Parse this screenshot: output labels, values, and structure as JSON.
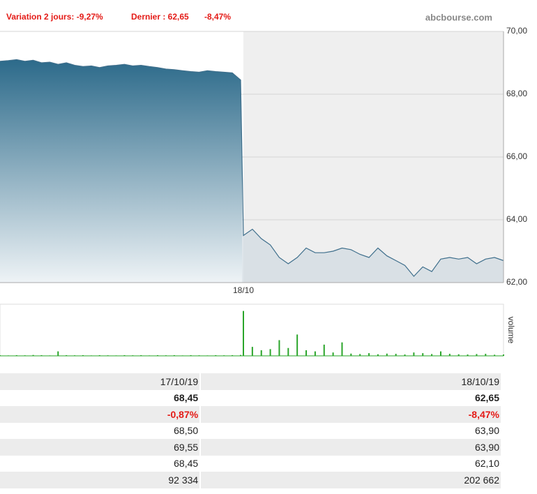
{
  "header": {
    "variation": "Variation 2 jours: -9,27%",
    "last": "Dernier : 62,65",
    "last_change": "-8,47%",
    "source": "abcbourse.com"
  },
  "chart_data": [
    {
      "type": "area",
      "color": "#3f6f8c",
      "categories": [
        null,
        null,
        null,
        null,
        null,
        null,
        null,
        null,
        null,
        null,
        null,
        null,
        null,
        null,
        null,
        null,
        null,
        null,
        null,
        null,
        null,
        null,
        null,
        null,
        null,
        null,
        null,
        null,
        null,
        null,
        "18/10",
        null,
        null,
        null,
        null,
        null,
        null,
        null,
        null,
        null,
        null,
        null,
        null,
        null,
        null,
        null,
        null,
        null,
        null,
        null,
        null,
        null,
        null,
        null,
        null,
        null,
        null,
        null,
        null,
        null
      ],
      "values": [
        69.05,
        69.07,
        69.1,
        69.05,
        69.08,
        69.0,
        69.02,
        68.95,
        69.0,
        68.92,
        68.88,
        68.9,
        68.85,
        68.9,
        68.92,
        68.95,
        68.9,
        68.92,
        68.88,
        68.85,
        68.8,
        68.78,
        68.75,
        68.72,
        68.7,
        68.75,
        68.72,
        68.7,
        68.68,
        68.45,
        63.5,
        63.7,
        63.4,
        63.2,
        62.8,
        62.6,
        62.8,
        63.1,
        62.95,
        62.95,
        63.0,
        63.1,
        63.05,
        62.9,
        62.8,
        63.1,
        62.85,
        62.7,
        62.55,
        62.2,
        62.5,
        62.35,
        62.75,
        62.8,
        62.75,
        62.8,
        62.6,
        62.75,
        62.8,
        62.7
      ],
      "ylim": [
        62,
        70
      ],
      "yticks": [
        {
          "value": 62,
          "label": "62,00"
        },
        {
          "value": 64,
          "label": "64,00"
        },
        {
          "value": 66,
          "label": "66,00"
        },
        {
          "value": 68,
          "label": "68,00"
        },
        {
          "value": 70,
          "label": "70,00"
        }
      ],
      "grid": true
    },
    {
      "type": "bar",
      "ylabel": "volume",
      "color": "#2aa52a",
      "ylim": [
        0,
        23000
      ],
      "values": [
        300,
        200,
        300,
        250,
        400,
        300,
        200,
        2000,
        300,
        250,
        300,
        200,
        300,
        250,
        200,
        300,
        250,
        300,
        200,
        300,
        250,
        300,
        200,
        300,
        250,
        200,
        300,
        250,
        300,
        400,
        20000,
        4000,
        2500,
        3000,
        7000,
        3500,
        9500,
        2500,
        2000,
        5000,
        1500,
        6000,
        1000,
        800,
        1200,
        700,
        1000,
        900,
        600,
        1500,
        1200,
        800,
        2000,
        900,
        700,
        600,
        800,
        900,
        500,
        600
      ]
    }
  ],
  "table": {
    "rows": [
      [
        "17/10/19",
        "18/10/19"
      ],
      [
        "68,45",
        "62,65"
      ],
      [
        "-0,87%",
        "-8,47%"
      ],
      [
        "68,50",
        "63,90"
      ],
      [
        "69,55",
        "63,90"
      ],
      [
        "68,45",
        "62,10"
      ],
      [
        "92 334",
        "202 662"
      ]
    ]
  }
}
